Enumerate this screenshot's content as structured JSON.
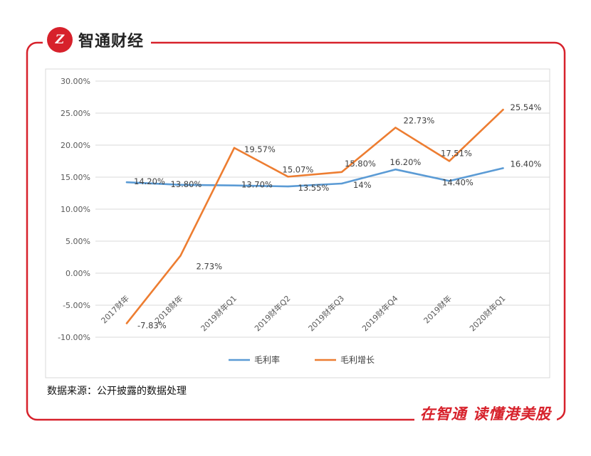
{
  "brand": {
    "logo_text": "Z",
    "name": "智通财经"
  },
  "footer": {
    "source": "数据来源：公开披露的数据处理",
    "slogan": "在智通 读懂港美股"
  },
  "colors": {
    "frame": "#d7212b",
    "gross_margin": "#5b9bd5",
    "gross_profit_growth": "#ed7d31",
    "grid": "#d9d9d9"
  },
  "chart_data": {
    "type": "line",
    "categories": [
      "2017财年",
      "2018财年",
      "2019财年Q1",
      "2019财年Q2",
      "2019财年Q3",
      "2019财年Q4",
      "2019财年",
      "2020财年Q1"
    ],
    "series": [
      {
        "name": "毛利率",
        "values": [
          14.2,
          13.8,
          13.7,
          13.55,
          14.0,
          16.2,
          14.4,
          16.4
        ],
        "labels": [
          "14.20%",
          "13.80%",
          "13.70%",
          "13.55%",
          "14%",
          "16.20%",
          "14.40%",
          "16.40%"
        ]
      },
      {
        "name": "毛利增长",
        "values": [
          -7.83,
          2.73,
          19.57,
          15.07,
          15.8,
          22.73,
          17.51,
          25.54
        ],
        "labels": [
          "-7.83%",
          "2.73%",
          "19.57%",
          "15.07%",
          "15.80%",
          "22.73%",
          "17.51%",
          "25.54%"
        ]
      }
    ],
    "ylim": [
      -10,
      30
    ],
    "yticks": [
      "-10.00%",
      "-5.00%",
      "0.00%",
      "5.00%",
      "10.00%",
      "15.00%",
      "20.00%",
      "25.00%",
      "30.00%"
    ],
    "grid": true,
    "legend": "bottom"
  }
}
